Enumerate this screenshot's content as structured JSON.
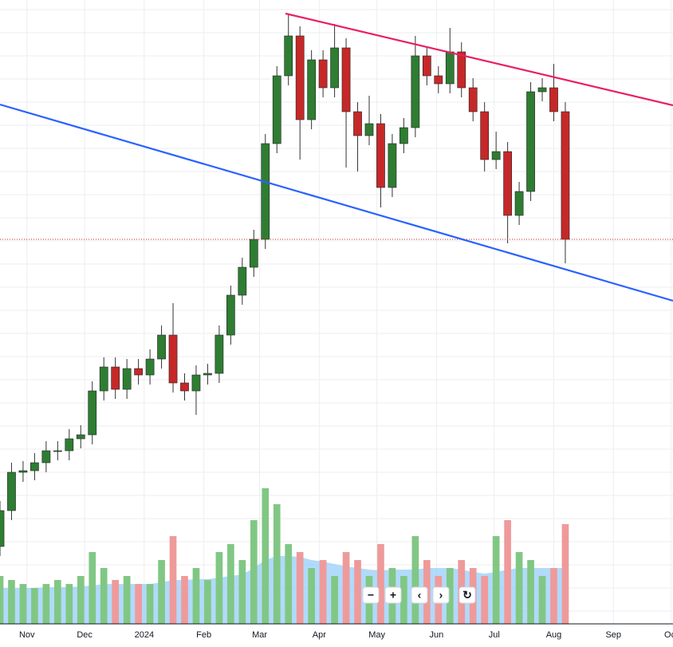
{
  "chart_data": {
    "type": "candlestick",
    "x": [
      0,
      6,
      12,
      18,
      24,
      30,
      36,
      42,
      48,
      54,
      60,
      66,
      72,
      78,
      84,
      90,
      96,
      102,
      108,
      114,
      120,
      126,
      132,
      138,
      144,
      150,
      156,
      162,
      168,
      174,
      180,
      186,
      192,
      198,
      204,
      210,
      216,
      222,
      228,
      234,
      240,
      246,
      252,
      258,
      264,
      270,
      276,
      282,
      288,
      294
    ],
    "open": [
      115,
      160,
      208,
      210,
      220,
      235,
      235,
      250,
      255,
      310,
      340,
      312,
      338,
      330,
      350,
      380,
      320,
      310,
      330,
      332,
      380,
      430,
      465,
      500,
      620,
      705,
      755,
      650,
      725,
      690,
      740,
      660,
      630,
      645,
      565,
      620,
      640,
      730,
      705,
      695,
      735,
      690,
      660,
      600,
      610,
      530,
      560,
      685,
      690,
      660
    ],
    "high": [
      172,
      220,
      222,
      232,
      247,
      247,
      262,
      267,
      322,
      352,
      352,
      350,
      350,
      362,
      392,
      420,
      332,
      342,
      344,
      392,
      442,
      477,
      512,
      632,
      717,
      783,
      767,
      737,
      737,
      770,
      752,
      672,
      680,
      657,
      632,
      652,
      755,
      742,
      717,
      765,
      747,
      702,
      672,
      635,
      622,
      572,
      697,
      702,
      720,
      672
    ],
    "low": [
      103,
      148,
      196,
      198,
      208,
      223,
      223,
      238,
      243,
      298,
      300,
      300,
      318,
      318,
      338,
      308,
      298,
      280,
      318,
      320,
      368,
      418,
      453,
      488,
      608,
      693,
      600,
      638,
      678,
      678,
      590,
      585,
      618,
      540,
      553,
      608,
      628,
      693,
      683,
      683,
      678,
      648,
      585,
      588,
      495,
      518,
      548,
      673,
      648,
      470
    ],
    "close": [
      160,
      208,
      210,
      220,
      235,
      235,
      250,
      255,
      310,
      340,
      312,
      338,
      330,
      350,
      380,
      320,
      310,
      330,
      332,
      380,
      430,
      465,
      500,
      620,
      705,
      755,
      650,
      725,
      690,
      740,
      660,
      630,
      645,
      565,
      620,
      640,
      730,
      705,
      695,
      735,
      690,
      660,
      600,
      610,
      530,
      560,
      685,
      690,
      660,
      500
    ],
    "volume": [
      60,
      55,
      50,
      45,
      50,
      55,
      50,
      60,
      90,
      70,
      55,
      60,
      50,
      50,
      80,
      110,
      60,
      70,
      55,
      90,
      100,
      80,
      130,
      170,
      150,
      100,
      90,
      70,
      80,
      60,
      90,
      80,
      60,
      100,
      70,
      60,
      110,
      80,
      60,
      70,
      80,
      70,
      60,
      110,
      130,
      90,
      80,
      60,
      70,
      125
    ],
    "volume_ma": [
      45,
      45,
      45,
      45,
      46,
      46,
      46,
      47,
      48,
      50,
      50,
      50,
      50,
      50,
      52,
      55,
      55,
      56,
      56,
      58,
      60,
      62,
      70,
      80,
      85,
      85,
      84,
      80,
      78,
      75,
      72,
      70,
      68,
      67,
      68,
      68,
      68,
      70,
      70,
      70,
      68,
      65,
      63,
      65,
      68,
      70,
      70,
      70,
      70,
      70
    ],
    "xlim": [
      0,
      350
    ],
    "ylim": [
      0,
      800
    ],
    "vlim": [
      0,
      220
    ],
    "xticks": [
      {
        "value": 14,
        "label": "Nov"
      },
      {
        "value": 44,
        "label": "Dec"
      },
      {
        "value": 75,
        "label": "2024"
      },
      {
        "value": 106,
        "label": "Feb"
      },
      {
        "value": 135,
        "label": "Mar"
      },
      {
        "value": 166,
        "label": "Apr"
      },
      {
        "value": 196,
        "label": "May"
      },
      {
        "value": 227,
        "label": "Jun"
      },
      {
        "value": 257,
        "label": "Jul"
      },
      {
        "value": 288,
        "label": "Aug"
      },
      {
        "value": 319,
        "label": "Sep"
      },
      {
        "value": 349,
        "label": "Oct"
      }
    ],
    "up_color": "#2e7d32",
    "down_color": "#c62828",
    "volume_up_color": "#81c784",
    "volume_down_color": "#ef9a9a",
    "volume_ma_color": "#90caf9",
    "trendlines": [
      {
        "color": "#e91e63",
        "x": [
          148.5,
          350
        ],
        "y": [
          783,
          668
        ]
      },
      {
        "color": "#2962ff",
        "x": [
          0,
          350
        ],
        "y": [
          669,
          423
        ]
      }
    ],
    "grid": true,
    "controls": [
      "−",
      "+",
      "‹",
      "›",
      "↻"
    ]
  }
}
